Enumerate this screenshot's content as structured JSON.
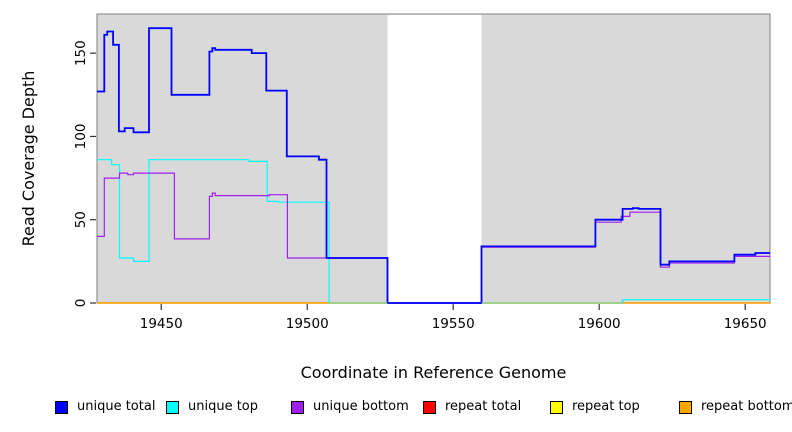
{
  "chart_data": {
    "type": "line",
    "subtype": "step",
    "title": "",
    "xlabel": "Coordinate in Reference Genome",
    "ylabel": "Read Coverage Depth",
    "xlim": [
      19428,
      19658.5
    ],
    "ylim": [
      0,
      173.5
    ],
    "x_ticks": [
      19450,
      19500,
      19550,
      19600,
      19650
    ],
    "y_ticks": [
      0,
      50,
      100,
      150
    ],
    "grid": "off",
    "plot_bg": "#D9D9D9",
    "border_color": "#8A8A8A",
    "tick_color": "#333333",
    "gap_region": [
      19527.5,
      19559.7
    ],
    "zero_line_blend": {
      "color": "#8FD08F",
      "segments": [
        [
          19507.5,
          19527.5
        ],
        [
          19559.7,
          19608
        ]
      ]
    },
    "series": [
      {
        "name": "repeat total",
        "color": "#FF0000",
        "width": 1.2,
        "steps": [
          [
            19428,
            0
          ],
          [
            19658.5,
            0
          ]
        ]
      },
      {
        "name": "repeat top",
        "color": "#FFFF00",
        "width": 1.2,
        "steps": [
          [
            19428,
            0
          ],
          [
            19658.5,
            0
          ]
        ]
      },
      {
        "name": "repeat bottom",
        "color": "#FFA500",
        "width": 1.3,
        "steps": [
          [
            19428,
            0
          ],
          [
            19658.5,
            0
          ]
        ]
      },
      {
        "name": "unique top",
        "color": "#00FFFF",
        "width": 1.2,
        "steps": [
          [
            19428,
            86
          ],
          [
            19433,
            83
          ],
          [
            19435.7,
            27
          ],
          [
            19440.5,
            25
          ],
          [
            19445.8,
            86
          ],
          [
            19480,
            85
          ],
          [
            19486.3,
            61
          ],
          [
            19490,
            60.5
          ],
          [
            19507.5,
            0
          ],
          [
            19608,
            2
          ],
          [
            19658.5,
            2
          ]
        ]
      },
      {
        "name": "unique bottom",
        "color": "#A020F0",
        "width": 1.2,
        "steps": [
          [
            19428,
            40
          ],
          [
            19430.5,
            75
          ],
          [
            19435.7,
            78
          ],
          [
            19438.5,
            77
          ],
          [
            19440.5,
            78
          ],
          [
            19454.5,
            38.5
          ],
          [
            19466.5,
            64
          ],
          [
            19467.5,
            66
          ],
          [
            19468.5,
            64.5
          ],
          [
            19487,
            65
          ],
          [
            19493.2,
            27
          ],
          [
            19527.5,
            0
          ],
          [
            19559.7,
            33.5
          ],
          [
            19598.7,
            48.5
          ],
          [
            19607.5,
            52
          ],
          [
            19610.5,
            54.5
          ],
          [
            19621,
            21.5
          ],
          [
            19624,
            24
          ],
          [
            19646.3,
            28
          ],
          [
            19658.5,
            28
          ]
        ]
      },
      {
        "name": "unique total",
        "color": "#0000FF",
        "width": 1.8,
        "steps": [
          [
            19428,
            127
          ],
          [
            19430.5,
            161
          ],
          [
            19431.5,
            163
          ],
          [
            19433.5,
            155
          ],
          [
            19435.5,
            103
          ],
          [
            19437.5,
            105
          ],
          [
            19440.5,
            102.5
          ],
          [
            19445.8,
            165
          ],
          [
            19453.5,
            125
          ],
          [
            19466.5,
            151
          ],
          [
            19467.5,
            153
          ],
          [
            19468.5,
            152
          ],
          [
            19481,
            150
          ],
          [
            19486,
            127.5
          ],
          [
            19493,
            88
          ],
          [
            19504,
            86
          ],
          [
            19506.6,
            27
          ],
          [
            19527.5,
            0
          ],
          [
            19559.7,
            34
          ],
          [
            19598.7,
            50
          ],
          [
            19608,
            56.5
          ],
          [
            19611.5,
            57
          ],
          [
            19613.5,
            56.5
          ],
          [
            19621,
            23
          ],
          [
            19624,
            25
          ],
          [
            19646.3,
            29
          ],
          [
            19653.5,
            30
          ],
          [
            19658.5,
            30
          ]
        ]
      }
    ],
    "legend": [
      {
        "label": "unique total",
        "color": "#0000FF"
      },
      {
        "label": "unique top",
        "color": "#00FFFF"
      },
      {
        "label": "unique bottom",
        "color": "#A020F0"
      },
      {
        "label": "repeat total",
        "color": "#FF0000"
      },
      {
        "label": "repeat top",
        "color": "#FFFF00"
      },
      {
        "label": "repeat bottom",
        "color": "#FFA500"
      }
    ],
    "legend_position": "bottom"
  }
}
